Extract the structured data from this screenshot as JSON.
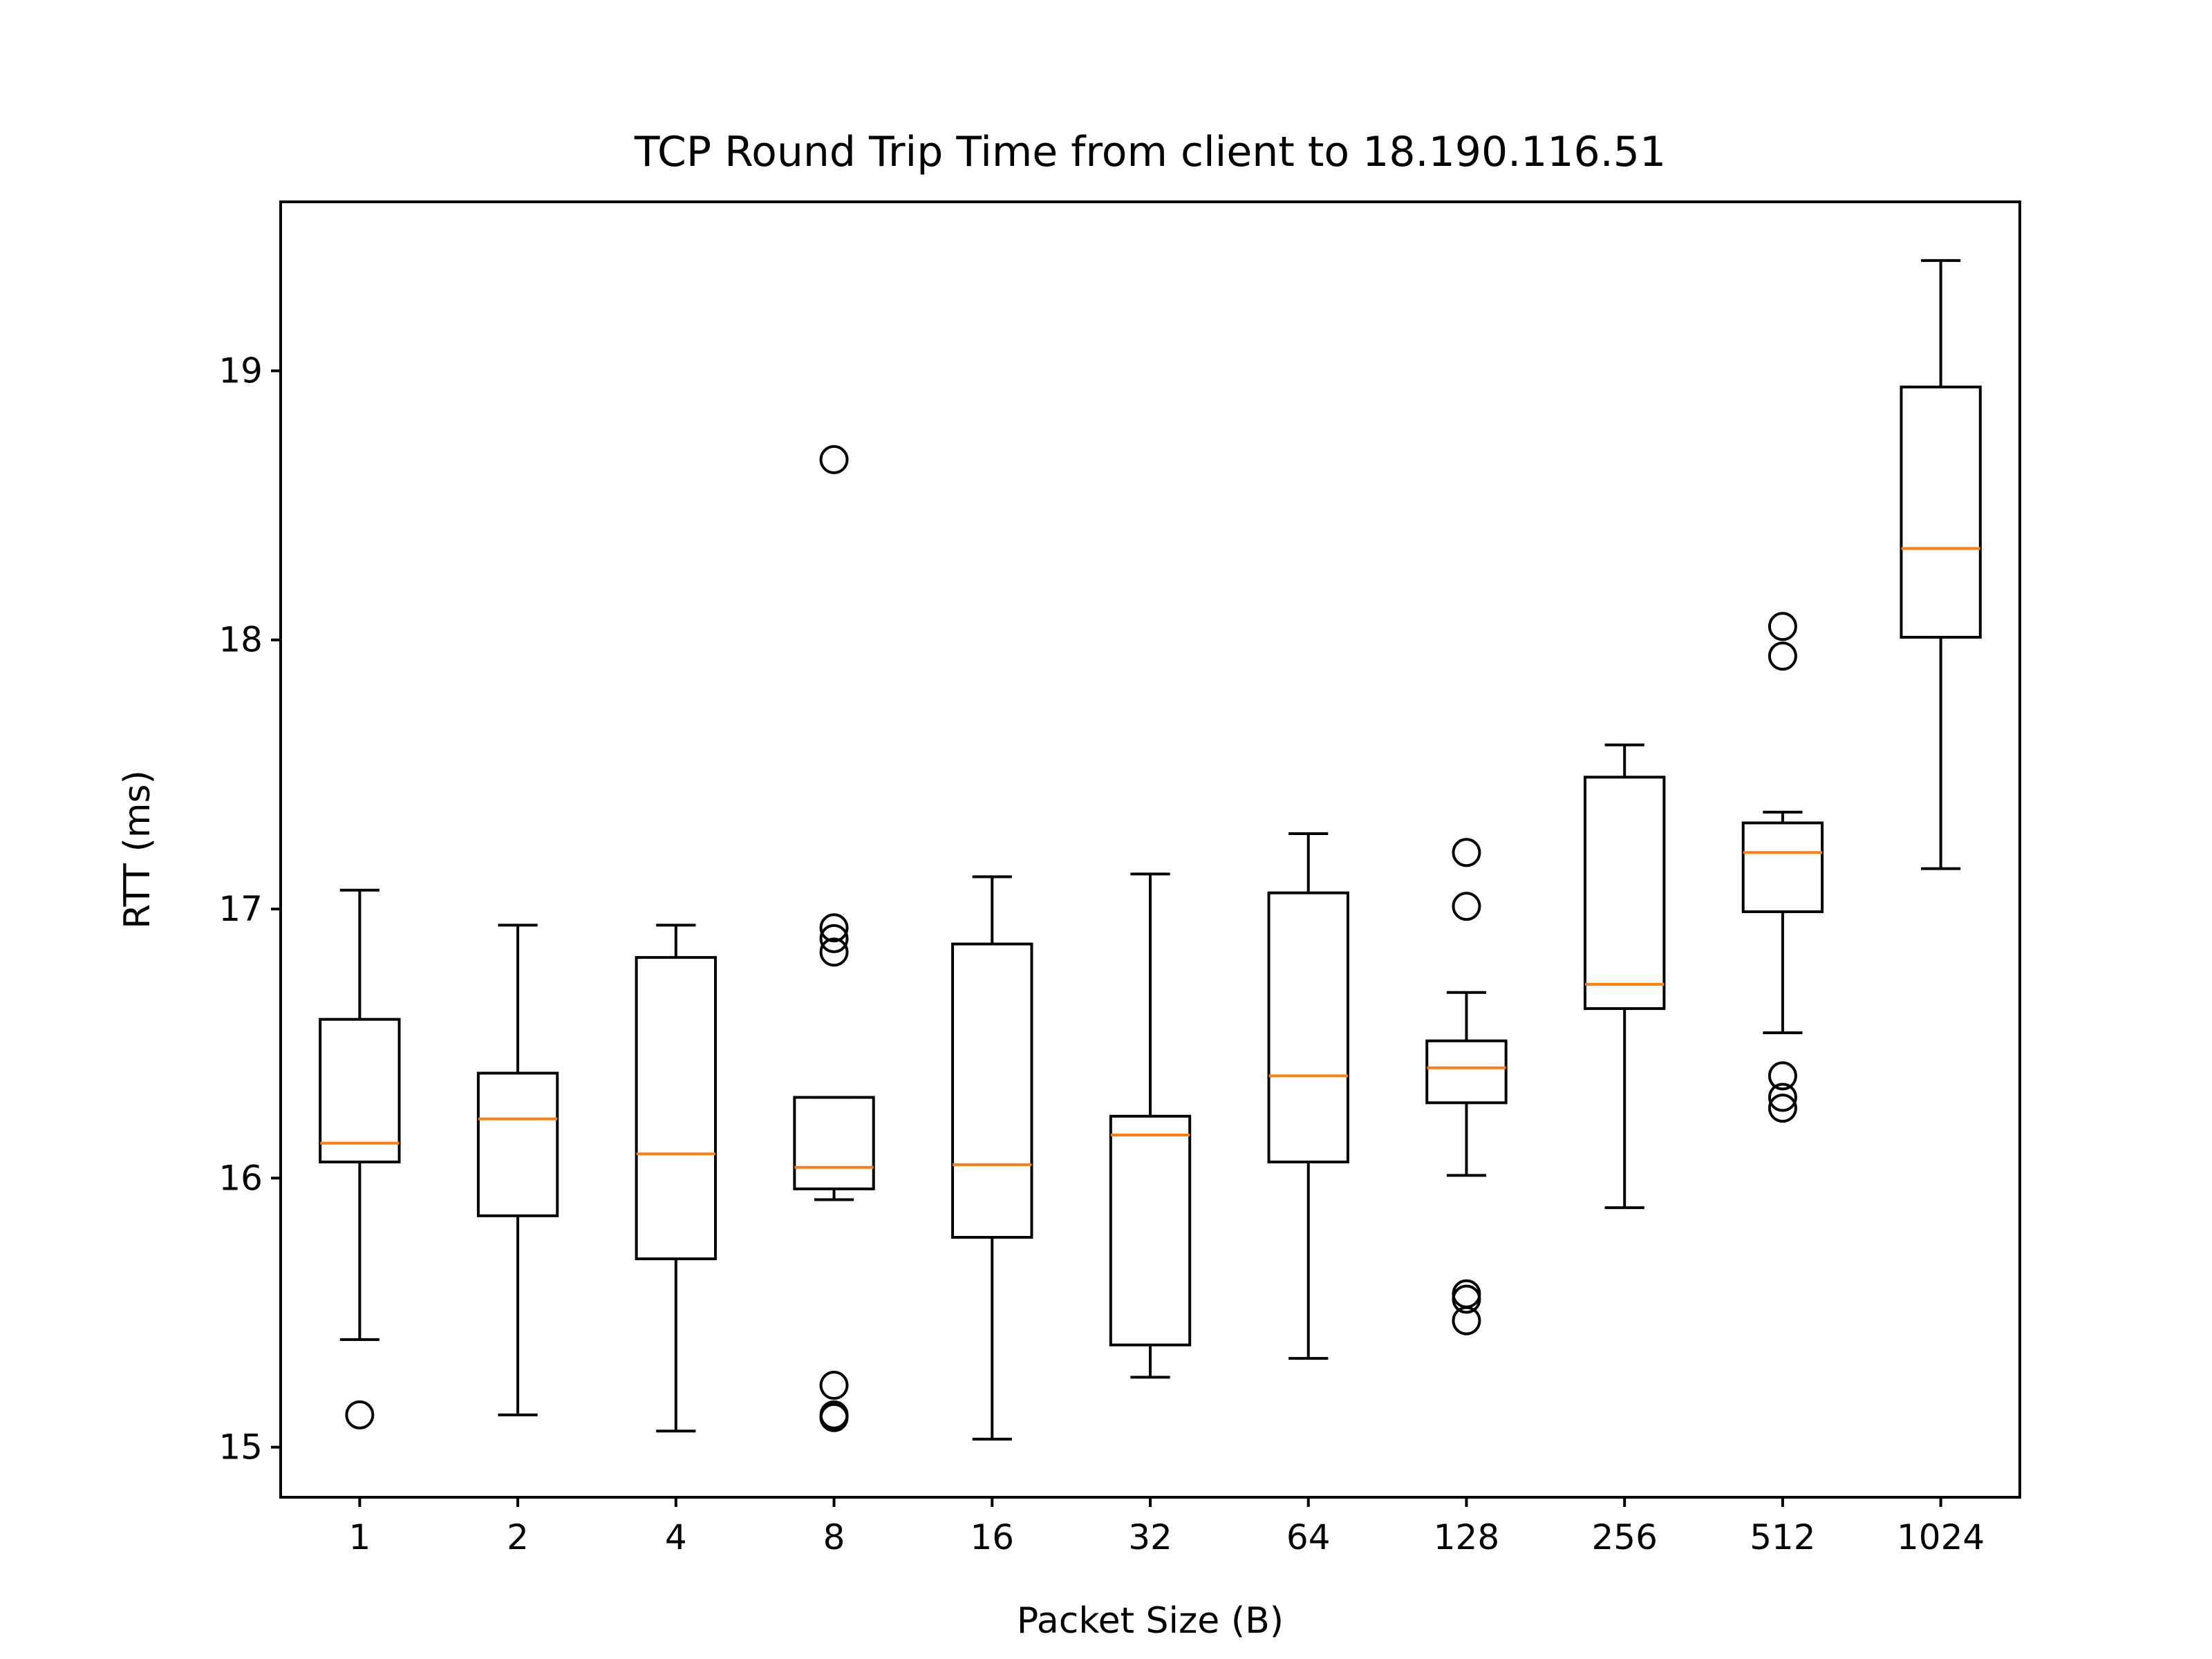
{
  "chart_data": {
    "type": "box",
    "title": "TCP Round Trip Time from client to 18.190.116.51",
    "x_label": "Packet Size (B)",
    "y_label": "RTT (ms)",
    "categories": [
      "1",
      "2",
      "4",
      "8",
      "16",
      "32",
      "64",
      "128",
      "256",
      "512",
      "1024"
    ],
    "boxes": [
      {
        "whislo": 15.4,
        "q1": 16.06,
        "med": 16.13,
        "q3": 16.59,
        "whishi": 17.07,
        "fliers": [
          15.12
        ]
      },
      {
        "whislo": 15.12,
        "q1": 15.86,
        "med": 16.22,
        "q3": 16.39,
        "whishi": 16.94,
        "fliers": []
      },
      {
        "whislo": 15.06,
        "q1": 15.7,
        "med": 16.09,
        "q3": 16.82,
        "whishi": 16.94,
        "fliers": []
      },
      {
        "whislo": 15.92,
        "q1": 15.96,
        "med": 16.04,
        "q3": 16.3,
        "whishi": 16.3,
        "fliers": [
          18.67,
          16.93,
          16.89,
          16.84,
          15.23,
          15.12,
          15.11
        ]
      },
      {
        "whislo": 15.03,
        "q1": 15.78,
        "med": 16.05,
        "q3": 16.87,
        "whishi": 17.12,
        "fliers": []
      },
      {
        "whislo": 15.26,
        "q1": 15.38,
        "med": 16.16,
        "q3": 16.23,
        "whishi": 17.13,
        "fliers": []
      },
      {
        "whislo": 15.33,
        "q1": 16.06,
        "med": 16.38,
        "q3": 17.06,
        "whishi": 17.28,
        "fliers": []
      },
      {
        "whislo": 16.01,
        "q1": 16.28,
        "med": 16.41,
        "q3": 16.51,
        "whishi": 16.69,
        "fliers": [
          17.21,
          17.01,
          15.57,
          15.55,
          15.47
        ]
      },
      {
        "whislo": 15.89,
        "q1": 16.63,
        "med": 16.72,
        "q3": 17.49,
        "whishi": 17.61,
        "fliers": []
      },
      {
        "whislo": 16.54,
        "q1": 16.99,
        "med": 17.21,
        "q3": 17.32,
        "whishi": 17.36,
        "fliers": [
          18.05,
          17.94,
          16.38,
          16.3,
          16.26
        ]
      },
      {
        "whislo": 17.15,
        "q1": 18.01,
        "med": 18.34,
        "q3": 18.94,
        "whishi": 19.41,
        "fliers": []
      }
    ],
    "box_color": "#000000",
    "median_color": "#ff7f0e",
    "ylim": [
      14.814,
      19.628
    ],
    "yticks": [
      15,
      16,
      17,
      18,
      19
    ],
    "grid": false
  }
}
